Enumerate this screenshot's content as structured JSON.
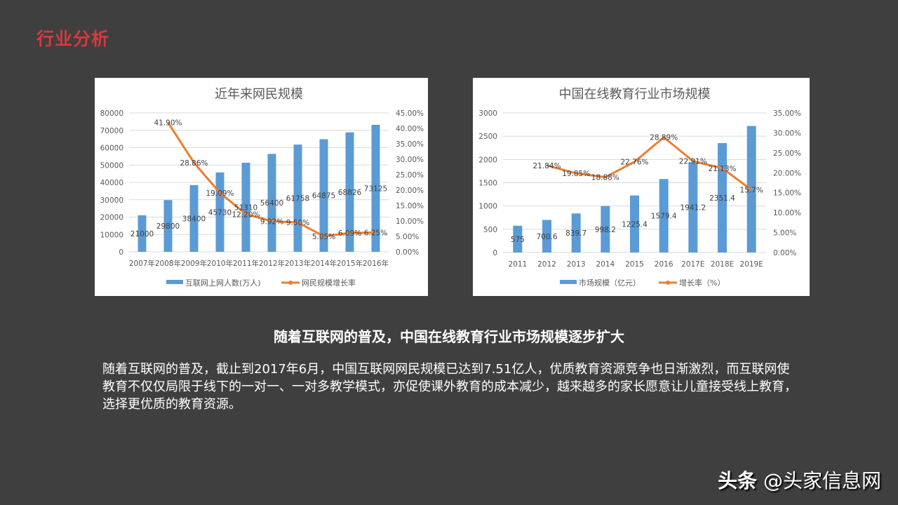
{
  "page": {
    "title": "行业分析",
    "headline": "随着互联网的普及，中国在线教育行业市场规模逐步扩大",
    "body": "随着互联网的普及，截止到2017年6月，中国互联网网民规模已达到7.51亿人，优质教育资源竞争也日渐激烈，而互联网使教育不仅仅局限于线下的一对一、一对多教学模式，亦促使课外教育的成本减少，越来越多的家长愿意让儿童接受线上教育，选择更优质的教育资源。",
    "watermark_brand": "头条",
    "watermark_handle": "@头家信息网"
  },
  "colors": {
    "background": "#3f3f3f",
    "title_red": "#d9383f",
    "bar_blue": "#5b9bd5",
    "line_orange": "#ed7d31",
    "grid": "#d9d9d9",
    "axis_text": "#595959"
  },
  "chart_data": [
    {
      "type": "bar+line",
      "title": "近年来网民规模",
      "categories": [
        "2007年",
        "2008年",
        "2009年",
        "2010年",
        "2011年",
        "2012年",
        "2013年",
        "2014年",
        "2015年",
        "2016年"
      ],
      "series": [
        {
          "name": "互联网上网人数(万人)",
          "type": "bar",
          "axis": "left",
          "values": [
            21000,
            29800,
            38400,
            45730,
            51310,
            56400,
            61758,
            64875,
            68826,
            73125
          ],
          "labels": [
            "21000",
            "29800",
            "38400",
            "45730",
            "51310",
            "56400",
            "61758",
            "64875",
            "68826",
            "73125"
          ]
        },
        {
          "name": "网民规模增长率",
          "type": "line",
          "axis": "right",
          "values": [
            null,
            41.9,
            28.86,
            19.09,
            12.2,
            9.92,
            9.5,
            5.05,
            6.09,
            6.25
          ],
          "labels": [
            "",
            "41.90%",
            "28.86%",
            "19.09%",
            "12.20%",
            "9.92%",
            "9.50%",
            "5.05%",
            "6.09%",
            "6.25%"
          ]
        }
      ],
      "y_left": {
        "min": 0,
        "max": 80000,
        "step": 10000,
        "ticks": [
          "0",
          "10000",
          "20000",
          "30000",
          "40000",
          "50000",
          "60000",
          "70000",
          "80000"
        ]
      },
      "y_right": {
        "min": 0,
        "max": 45,
        "step": 5,
        "ticks": [
          "0.00%",
          "5.00%",
          "10.00%",
          "15.00%",
          "20.00%",
          "25.00%",
          "30.00%",
          "35.00%",
          "40.00%",
          "45.00%"
        ]
      },
      "grid": true,
      "legend_position": "bottom"
    },
    {
      "type": "bar+line",
      "title": "中国在线教育行业市场规模",
      "categories": [
        "2011",
        "2012",
        "2013",
        "2014",
        "2015",
        "2016",
        "2017E",
        "2018E",
        "2019E"
      ],
      "series": [
        {
          "name": "市场规模（亿元）",
          "type": "bar",
          "axis": "left",
          "values": [
            575,
            700.6,
            839.7,
            998.2,
            1225.4,
            1579.4,
            1941.2,
            2351.4,
            2720
          ],
          "labels": [
            "575",
            "700.6",
            "839.7",
            "998.2",
            "1225.4",
            "1579.4",
            "1941.2",
            "2351.4",
            ""
          ]
        },
        {
          "name": "增长率（%）",
          "type": "line",
          "axis": "right",
          "values": [
            null,
            21.84,
            19.85,
            18.88,
            22.76,
            28.89,
            22.91,
            21.13,
            15.7
          ],
          "labels": [
            "",
            "21.84%",
            "19.85%",
            "18.88%",
            "22.76%",
            "28.89%",
            "22.91%",
            "21.13%",
            "15.7%"
          ]
        }
      ],
      "y_left": {
        "min": 0,
        "max": 3000,
        "step": 500,
        "ticks": [
          "0",
          "500",
          "1000",
          "1500",
          "2000",
          "2500",
          "3000"
        ]
      },
      "y_right": {
        "min": 0,
        "max": 35,
        "step": 5,
        "ticks": [
          "0.00%",
          "5.00%",
          "10.00%",
          "15.00%",
          "20.00%",
          "25.00%",
          "30.00%",
          "35.00%"
        ]
      },
      "grid": true,
      "legend_position": "bottom",
      "notes": "2019E bar label and rate label overlap in the image"
    }
  ]
}
